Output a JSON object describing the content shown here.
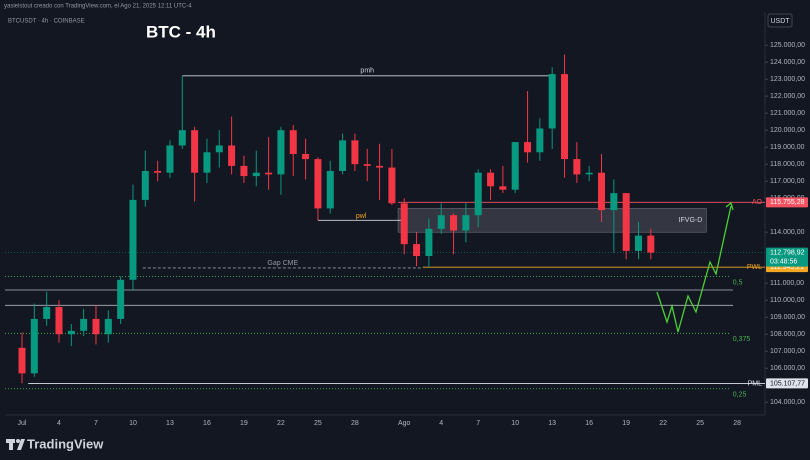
{
  "header": {
    "credit": "yasielstout creado con TradingView.com, el Ago 21, 2025 12:11 UTC-4",
    "symbol": "BTCUSDT · 4h · COINBASE",
    "currency": "USDT",
    "brand": "TradingView"
  },
  "chart_data": {
    "type": "candlestick",
    "title": "BTC - 4h",
    "categories": [
      "Jul",
      null,
      null,
      "4",
      null,
      null,
      "7",
      null,
      null,
      "10",
      null,
      null,
      "13",
      null,
      null,
      "16",
      null,
      null,
      "19",
      null,
      null,
      "22",
      null,
      null,
      "25",
      null,
      null,
      "28",
      null,
      null,
      null,
      "Ago",
      null,
      null,
      "4",
      null,
      null,
      "7",
      null,
      null,
      "10",
      null,
      null,
      "13",
      null,
      null,
      "16",
      null,
      null,
      "19",
      null,
      null,
      "22",
      null,
      null,
      "25",
      null,
      null,
      "28"
    ],
    "open": [
      107200,
      105700,
      108900,
      109600,
      108000,
      108200,
      108900,
      108000,
      108900,
      111200,
      115900,
      117600,
      117500,
      119100,
      120000,
      117500,
      118700,
      119100,
      117900,
      117300,
      117500,
      117400,
      120000,
      118600,
      118300,
      115400,
      117600,
      119400,
      118000,
      117900,
      117800,
      115700,
      113300,
      112600,
      114200,
      115000,
      114100,
      115000,
      117500,
      116700,
      116500,
      119300,
      118700,
      120100,
      123300,
      118300,
      117400,
      117500,
      115300,
      116300,
      112900,
      113800,
      null,
      null,
      null,
      null,
      null,
      null,
      null
    ],
    "high": [
      108100,
      109800,
      110500,
      110000,
      108600,
      109500,
      109700,
      109400,
      111400,
      116800,
      118800,
      118200,
      119400,
      123200,
      120200,
      119500,
      120000,
      120800,
      118500,
      118800,
      119600,
      120200,
      120300,
      119500,
      118400,
      118200,
      119800,
      119800,
      118900,
      119200,
      118900,
      116000,
      114000,
      114800,
      115700,
      115100,
      115700,
      117700,
      117700,
      117900,
      119300,
      122300,
      120700,
      123700,
      124450,
      119300,
      117900,
      118600,
      117100,
      116300,
      114600,
      114200,
      null,
      null,
      null,
      null,
      null,
      null,
      null
    ],
    "low": [
      105120,
      105500,
      108500,
      107500,
      107300,
      107900,
      107400,
      107500,
      108600,
      110600,
      115500,
      117000,
      117200,
      118900,
      115800,
      116900,
      117800,
      117400,
      116900,
      116700,
      116500,
      116200,
      117300,
      117100,
      114700,
      115100,
      117400,
      117600,
      117000,
      115900,
      115600,
      112700,
      112000,
      111900,
      113900,
      112700,
      113400,
      114300,
      115900,
      116300,
      116300,
      118100,
      118200,
      118900,
      117200,
      116900,
      117000,
      114600,
      112800,
      112400,
      112400,
      112400,
      null,
      null,
      null,
      null,
      null,
      null,
      null
    ],
    "close": [
      105700,
      108900,
      109600,
      108000,
      108200,
      108900,
      108000,
      108900,
      111200,
      115900,
      117600,
      117500,
      119100,
      120000,
      117500,
      118700,
      119100,
      117900,
      117300,
      117500,
      117400,
      120000,
      118600,
      118300,
      115400,
      117600,
      119400,
      118000,
      117900,
      117800,
      115700,
      113300,
      112600,
      114200,
      115000,
      114100,
      115000,
      117500,
      116700,
      116500,
      119300,
      118700,
      120100,
      123300,
      118300,
      117400,
      117500,
      115300,
      116300,
      112900,
      113800,
      112798.92,
      null,
      null,
      null,
      null,
      null,
      null,
      null
    ],
    "up_color": "#089981",
    "down_color": "#f23645",
    "ylim": [
      103250,
      126950
    ],
    "yticks": [
      {
        "value": 104000,
        "label": "104.000,00"
      },
      {
        "value": 106000,
        "label": "106.000,00"
      },
      {
        "value": 107000,
        "label": "107.000,00"
      },
      {
        "value": 108000,
        "label": "108.000,00"
      },
      {
        "value": 109000,
        "label": "109.000,00"
      },
      {
        "value": 110000,
        "label": "110.000,00"
      },
      {
        "value": 111000,
        "label": "111.000,00"
      },
      {
        "value": 114000,
        "label": "114.000,00"
      },
      {
        "value": 116000,
        "label": "116.000,00"
      },
      {
        "value": 117000,
        "label": "117.000,00"
      },
      {
        "value": 118000,
        "label": "118.000,00"
      },
      {
        "value": 119000,
        "label": "119.000,00"
      },
      {
        "value": 120000,
        "label": "120.000,00"
      },
      {
        "value": 121000,
        "label": "121.000,00"
      },
      {
        "value": 122000,
        "label": "122.000,00"
      },
      {
        "value": 123000,
        "label": "123.000,00"
      },
      {
        "value": 124000,
        "label": "124.000,00"
      },
      {
        "value": 125000,
        "label": "125.000,00"
      }
    ],
    "last_price": {
      "value": 112798.92,
      "label": "112.798,92",
      "countdown": "03:48:56",
      "color": "#089981"
    },
    "levels": [
      {
        "name": "pmh",
        "value": 123200,
        "color": "#d1d4dc",
        "style": "solid"
      },
      {
        "name": "pwl",
        "value": 114700,
        "color": "#d1d4dc",
        "style": "solid"
      },
      {
        "name": "Gap CME",
        "value": 111900,
        "color": "#9598a1",
        "style": "dashed"
      },
      {
        "name": "AO",
        "value": 115755.28,
        "value_label": "115.755,28",
        "color": "#f7525f",
        "style": "solid"
      },
      {
        "name": "PWL",
        "value": 111945.21,
        "value_label": "111.945,21",
        "color": "#f5a623",
        "style": "solid"
      },
      {
        "name": "PML",
        "value": 105107.77,
        "value_label": "105.107,77",
        "color": "#e0e3eb",
        "style": "solid"
      },
      {
        "name": "0,5",
        "value": 111400,
        "color": "#4caf50",
        "style": "dotted"
      },
      {
        "name": "0,375",
        "value": 108050,
        "color": "#4caf50",
        "style": "dotted"
      },
      {
        "name": "0,25",
        "value": 104800,
        "color": "#4caf50",
        "style": "dotted"
      }
    ],
    "plain_levels": [
      110600,
      109700
    ],
    "zone": {
      "name": "IFVG-D",
      "top": 115400,
      "bottom": 114000,
      "color": "#5d606b"
    }
  }
}
